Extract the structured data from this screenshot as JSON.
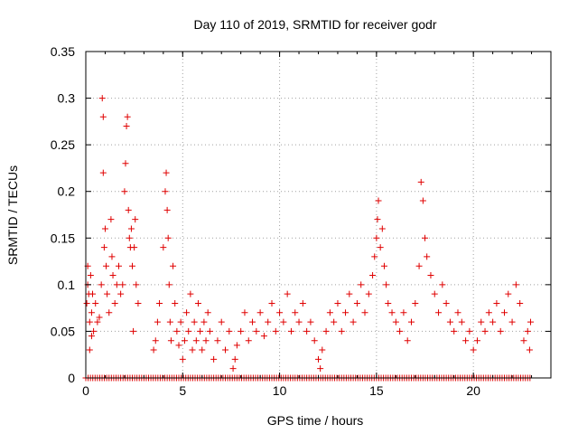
{
  "chart_data": {
    "type": "scatter",
    "title": "Day 110 of 2019, SRMTID for receiver godr",
    "xlabel": "GPS time / hours",
    "ylabel": "SRMTID / TECUs",
    "xlim": [
      0,
      24
    ],
    "ylim": [
      0,
      0.35
    ],
    "x_ticks": [
      0,
      5,
      10,
      15,
      20
    ],
    "x_tick_labels": [
      "0",
      "5",
      "10",
      "15",
      "20"
    ],
    "y_ticks": [
      0,
      0.05,
      0.1,
      0.15,
      0.2,
      0.25,
      0.3,
      0.35
    ],
    "y_tick_labels": [
      "0",
      "0.05",
      "0.1",
      "0.15",
      "0.2",
      "0.25",
      "0.3",
      "0.35"
    ],
    "grid": true,
    "marker": "+",
    "color": "#e00000",
    "series": [
      {
        "name": "SRMTID",
        "points": [
          [
            0.05,
            0.08
          ],
          [
            0.1,
            0.1
          ],
          [
            0.1,
            0.12
          ],
          [
            0.15,
            0.09
          ],
          [
            0.2,
            0.06
          ],
          [
            0.2,
            0.03
          ],
          [
            0.25,
            0.11
          ],
          [
            0.3,
            0.07
          ],
          [
            0.3,
            0.045
          ],
          [
            0.35,
            0.09
          ],
          [
            0.4,
            0.05
          ],
          [
            0.5,
            0.08
          ],
          [
            0.6,
            0.06
          ],
          [
            0.7,
            0.065
          ],
          [
            0.8,
            0.1
          ],
          [
            0.85,
            0.3
          ],
          [
            0.9,
            0.28
          ],
          [
            0.9,
            0.22
          ],
          [
            0.95,
            0.14
          ],
          [
            1.0,
            0.16
          ],
          [
            1.05,
            0.12
          ],
          [
            1.1,
            0.09
          ],
          [
            1.2,
            0.07
          ],
          [
            1.3,
            0.17
          ],
          [
            1.35,
            0.13
          ],
          [
            1.4,
            0.11
          ],
          [
            1.5,
            0.08
          ],
          [
            1.6,
            0.1
          ],
          [
            1.7,
            0.12
          ],
          [
            1.8,
            0.09
          ],
          [
            1.9,
            0.1
          ],
          [
            2.0,
            0.2
          ],
          [
            2.05,
            0.23
          ],
          [
            2.1,
            0.27
          ],
          [
            2.15,
            0.28
          ],
          [
            2.2,
            0.18
          ],
          [
            2.25,
            0.15
          ],
          [
            2.3,
            0.14
          ],
          [
            2.35,
            0.16
          ],
          [
            2.4,
            0.12
          ],
          [
            2.45,
            0.05
          ],
          [
            2.5,
            0.14
          ],
          [
            2.55,
            0.17
          ],
          [
            2.6,
            0.1
          ],
          [
            2.7,
            0.08
          ],
          [
            3.5,
            0.03
          ],
          [
            3.6,
            0.04
          ],
          [
            3.7,
            0.06
          ],
          [
            3.8,
            0.08
          ],
          [
            4.0,
            0.14
          ],
          [
            4.1,
            0.2
          ],
          [
            4.15,
            0.22
          ],
          [
            4.2,
            0.18
          ],
          [
            4.25,
            0.15
          ],
          [
            4.3,
            0.1
          ],
          [
            4.35,
            0.06
          ],
          [
            4.4,
            0.04
          ],
          [
            4.5,
            0.12
          ],
          [
            4.6,
            0.08
          ],
          [
            4.7,
            0.05
          ],
          [
            4.8,
            0.035
          ],
          [
            4.9,
            0.06
          ],
          [
            5.0,
            0.02
          ],
          [
            5.1,
            0.04
          ],
          [
            5.2,
            0.07
          ],
          [
            5.3,
            0.05
          ],
          [
            5.4,
            0.09
          ],
          [
            5.5,
            0.03
          ],
          [
            5.6,
            0.06
          ],
          [
            5.7,
            0.04
          ],
          [
            5.8,
            0.08
          ],
          [
            5.9,
            0.05
          ],
          [
            6.0,
            0.03
          ],
          [
            6.1,
            0.06
          ],
          [
            6.2,
            0.04
          ],
          [
            6.3,
            0.07
          ],
          [
            6.4,
            0.05
          ],
          [
            6.6,
            0.02
          ],
          [
            6.8,
            0.04
          ],
          [
            7.0,
            0.06
          ],
          [
            7.2,
            0.03
          ],
          [
            7.4,
            0.05
          ],
          [
            7.6,
            0.01
          ],
          [
            7.7,
            0.02
          ],
          [
            7.8,
            0.035
          ],
          [
            8.0,
            0.05
          ],
          [
            8.2,
            0.07
          ],
          [
            8.4,
            0.04
          ],
          [
            8.6,
            0.06
          ],
          [
            8.8,
            0.05
          ],
          [
            9.0,
            0.07
          ],
          [
            9.2,
            0.045
          ],
          [
            9.4,
            0.06
          ],
          [
            9.6,
            0.08
          ],
          [
            9.8,
            0.05
          ],
          [
            10.0,
            0.07
          ],
          [
            10.2,
            0.06
          ],
          [
            10.4,
            0.09
          ],
          [
            10.6,
            0.05
          ],
          [
            10.8,
            0.07
          ],
          [
            11.0,
            0.06
          ],
          [
            11.2,
            0.08
          ],
          [
            11.4,
            0.05
          ],
          [
            11.6,
            0.06
          ],
          [
            11.8,
            0.04
          ],
          [
            12.0,
            0.02
          ],
          [
            12.1,
            0.01
          ],
          [
            12.2,
            0.03
          ],
          [
            12.4,
            0.05
          ],
          [
            12.6,
            0.07
          ],
          [
            12.8,
            0.06
          ],
          [
            13.0,
            0.08
          ],
          [
            13.2,
            0.05
          ],
          [
            13.4,
            0.07
          ],
          [
            13.6,
            0.09
          ],
          [
            13.8,
            0.06
          ],
          [
            14.0,
            0.08
          ],
          [
            14.2,
            0.1
          ],
          [
            14.4,
            0.07
          ],
          [
            14.6,
            0.09
          ],
          [
            14.8,
            0.11
          ],
          [
            14.9,
            0.13
          ],
          [
            15.0,
            0.15
          ],
          [
            15.05,
            0.17
          ],
          [
            15.1,
            0.19
          ],
          [
            15.2,
            0.14
          ],
          [
            15.3,
            0.16
          ],
          [
            15.4,
            0.12
          ],
          [
            15.5,
            0.1
          ],
          [
            15.6,
            0.08
          ],
          [
            15.8,
            0.07
          ],
          [
            16.0,
            0.06
          ],
          [
            16.2,
            0.05
          ],
          [
            16.4,
            0.07
          ],
          [
            16.6,
            0.04
          ],
          [
            16.8,
            0.06
          ],
          [
            17.0,
            0.08
          ],
          [
            17.2,
            0.12
          ],
          [
            17.3,
            0.21
          ],
          [
            17.4,
            0.19
          ],
          [
            17.5,
            0.15
          ],
          [
            17.6,
            0.13
          ],
          [
            17.8,
            0.11
          ],
          [
            18.0,
            0.09
          ],
          [
            18.2,
            0.07
          ],
          [
            18.4,
            0.1
          ],
          [
            18.6,
            0.08
          ],
          [
            18.8,
            0.06
          ],
          [
            19.0,
            0.05
          ],
          [
            19.2,
            0.07
          ],
          [
            19.4,
            0.06
          ],
          [
            19.6,
            0.04
          ],
          [
            19.8,
            0.05
          ],
          [
            20.0,
            0.03
          ],
          [
            20.2,
            0.04
          ],
          [
            20.4,
            0.06
          ],
          [
            20.6,
            0.05
          ],
          [
            20.8,
            0.07
          ],
          [
            21.0,
            0.06
          ],
          [
            21.2,
            0.08
          ],
          [
            21.4,
            0.05
          ],
          [
            21.6,
            0.07
          ],
          [
            21.8,
            0.09
          ],
          [
            22.0,
            0.06
          ],
          [
            22.2,
            0.1
          ],
          [
            22.4,
            0.08
          ],
          [
            22.6,
            0.04
          ],
          [
            22.8,
            0.05
          ],
          [
            22.9,
            0.03
          ],
          [
            22.95,
            0.06
          ]
        ]
      }
    ]
  }
}
